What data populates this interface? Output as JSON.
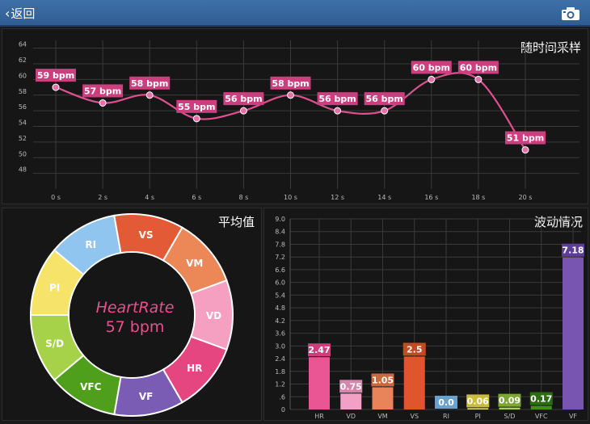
{
  "topbar": {
    "back_label": "返回",
    "camera_icon": "camera-icon",
    "color": "#2f6098"
  },
  "top_chart": {
    "title": "随时间采样",
    "line_color": "#e0508f",
    "chart_data": {
      "type": "line",
      "title": "随时间采样",
      "x": [
        "0 s",
        "2 s",
        "4 s",
        "6 s",
        "8 s",
        "10 s",
        "12 s",
        "14 s",
        "16 s",
        "18 s",
        "20 s"
      ],
      "series": [
        {
          "values": [
            59,
            57,
            58,
            55,
            56,
            58,
            56,
            56,
            60,
            60,
            51
          ],
          "labels": [
            "59 bpm",
            "57 bpm",
            "58 bpm",
            "55 bpm",
            "56 bpm",
            "58 bpm",
            "56 bpm",
            "56 bpm",
            "60 bpm",
            "60 bpm",
            "51 bpm"
          ]
        }
      ],
      "yticks": [
        "64",
        "62",
        "60",
        "58",
        "56",
        "54",
        "52",
        "50",
        "48"
      ],
      "ylim": [
        46,
        65
      ],
      "grid": true
    }
  },
  "donut": {
    "title": "平均值",
    "center_label": "HeartRate",
    "center_value": "57 bpm",
    "chart_data": {
      "type": "pie",
      "categories": [
        "HR",
        "VF",
        "VFC",
        "S/D",
        "PI",
        "RI",
        "VS",
        "VM",
        "VD"
      ],
      "colors": [
        "#e6467f",
        "#7a5cb5",
        "#4f9e1c",
        "#a6d24a",
        "#f5e36a",
        "#8fc5ee",
        "#e35a36",
        "#ec8858",
        "#f59fc1"
      ],
      "values": [
        1,
        1,
        1,
        1,
        1,
        1,
        1,
        1,
        1
      ]
    }
  },
  "bar_chart": {
    "title": "波动情况",
    "chart_data": {
      "type": "bar",
      "categories": [
        "HR",
        "VD",
        "VM",
        "VS",
        "RI",
        "PI",
        "S/D",
        "VFC",
        "VF"
      ],
      "values": [
        2.47,
        0.75,
        1.05,
        2.5,
        0.0,
        0.06,
        0.09,
        0.17,
        7.18
      ],
      "labels": [
        "2.47",
        "0.75",
        "1.05",
        "2.5",
        "0.0",
        "0.06",
        "0.09",
        "0.17",
        "7.18"
      ],
      "colors": [
        "#ea5593",
        "#f3a0c6",
        "#e9845a",
        "#e0552c",
        "#8fc5ee",
        "#f1e271",
        "#a8d34f",
        "#3f8f1e",
        "#7755b0"
      ],
      "label_colors": [
        "#cc3f7f",
        "#d486ac",
        "#c9693f",
        "#c54a1f",
        "#6aa2cf",
        "#c9bb3c",
        "#7da634",
        "#2c6d12",
        "#5e3d96"
      ],
      "yticks": [
        "9.0",
        "8.4",
        "7.8",
        "7.2",
        "6.6",
        "6.0",
        "5.4",
        "4.8",
        "4.2",
        "3.6",
        "3.0",
        "2.4",
        "1.8",
        "1.2",
        ".6",
        "0"
      ],
      "ylim": [
        0,
        9.0
      ],
      "grid": true
    }
  }
}
